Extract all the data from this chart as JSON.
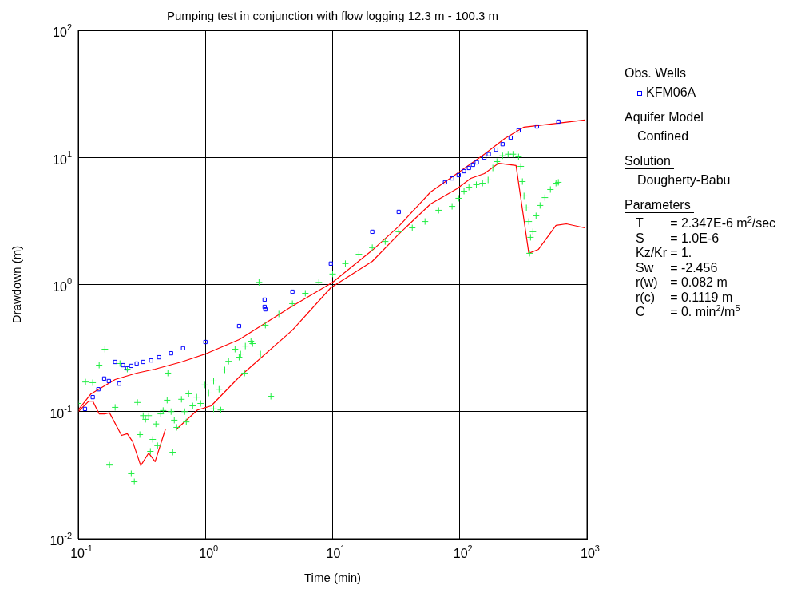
{
  "chart_data": {
    "type": "scatter",
    "title": "Pumping test in conjunction with flow logging 12.3 m - 100.3 m",
    "xlabel": "Time (min)",
    "ylabel": "Drawdown (m)",
    "legend_title": "Obs. Wells",
    "log": "xy",
    "grid": true,
    "legend": "right",
    "xlim": [
      0.1,
      1000
    ],
    "ylim": [
      0.01,
      100
    ],
    "xticks": [
      {
        "value": 0.1,
        "label": "10$^{-1}$"
      },
      {
        "value": 1,
        "label": "10$^{0}$"
      },
      {
        "value": 10,
        "label": "10$^{1}$"
      },
      {
        "value": 100,
        "label": "10$^{2}$"
      },
      {
        "value": 1000,
        "label": "10$^{3}$"
      }
    ],
    "yticks": [
      {
        "value": 0.01,
        "label": "10$^{-2}$"
      },
      {
        "value": 0.1,
        "label": "10$^{-1}$"
      },
      {
        "value": 1,
        "label": "10$^{0}$"
      },
      {
        "value": 10,
        "label": "10$^{1}$"
      },
      {
        "value": 100,
        "label": "10$^{2}$"
      }
    ],
    "annotations": [
      "Aquifer Model",
      "Confined",
      "Solution",
      "Dougherty-Babu",
      "Parameters",
      "T = 2.347E-6 m$^{2}$/sec",
      "S = 1.0E-6",
      "Kz/Kr = 1.",
      "Sw = -2.456",
      "r(w) = 0.082 m",
      "r(c) = 0.1119 m",
      "C = 0. min$^{2}$/m$^{5}$"
    ],
    "series": [
      {
        "type": "scatter",
        "name": "KFM06A",
        "color": "#0000ff",
        "marker": "square",
        "x": [
          0.113,
          0.13,
          0.144,
          0.16,
          0.174,
          0.21,
          0.195,
          0.225,
          0.243,
          0.261,
          0.288,
          0.324,
          0.374,
          0.432,
          0.537,
          0.667,
          1.0,
          1.84,
          2.92,
          2.92,
          2.96,
          4.83,
          9.68,
          20.5,
          33.1,
          76.5,
          87,
          98,
          108,
          118,
          127,
          136,
          156,
          169,
          193,
          217,
          251,
          290,
          404,
          596
        ],
        "values": [
          0.105,
          0.13,
          0.15,
          0.182,
          0.174,
          0.166,
          0.246,
          0.232,
          0.219,
          0.229,
          0.239,
          0.246,
          0.253,
          0.268,
          0.288,
          0.315,
          0.353,
          0.471,
          0.76,
          0.667,
          0.638,
          0.878,
          1.46,
          2.6,
          3.73,
          6.37,
          6.84,
          7.25,
          7.79,
          8.26,
          8.75,
          9.14,
          9.96,
          10.6,
          11.5,
          12.7,
          14.3,
          16.3,
          17.5,
          19.1
        ]
      },
      {
        "type": "scatter",
        "color": "#22ee44",
        "marker": "cross",
        "x": [
          0.1,
          0.114,
          0.13,
          0.146,
          0.162,
          0.176,
          0.195,
          0.213,
          0.243,
          0.261,
          0.276,
          0.292,
          0.305,
          0.324,
          0.338,
          0.358,
          0.369,
          0.385,
          0.408,
          0.42,
          0.445,
          0.465,
          0.5,
          0.507,
          0.537,
          0.553,
          0.569,
          0.594,
          0.648,
          0.687,
          0.707,
          0.738,
          0.794,
          0.853,
          0.917,
          0.986,
          1.06,
          1.16,
          1.16,
          1.32,
          1.28,
          1.42,
          1.52,
          1.71,
          1.89,
          1.84,
          2.03,
          2.06,
          2.28,
          2.35,
          2.64,
          2.71,
          2.96,
          3.27,
          3.78,
          4.83,
          6.1,
          7.8,
          10.0,
          12.6,
          16.1,
          20.5,
          25.9,
          33.1,
          42.3,
          53.3,
          68.2,
          87,
          98,
          108,
          118,
          135,
          151,
          167,
          182,
          196,
          217,
          240,
          262,
          290,
          302,
          311,
          320,
          334,
          349,
          360,
          354,
          376,
          398,
          428,
          467,
          516,
          571,
          596
        ],
        "values": [
          0.116,
          0.171,
          0.169,
          0.232,
          0.31,
          0.038,
          0.108,
          0.239,
          0.216,
          0.0325,
          0.0281,
          0.118,
          0.066,
          0.093,
          0.087,
          0.093,
          0.0487,
          0.0605,
          0.08,
          0.054,
          0.096,
          0.102,
          0.123,
          0.201,
          0.1,
          0.048,
          0.0857,
          0.0752,
          0.125,
          0.1,
          0.083,
          0.138,
          0.111,
          0.13,
          0.116,
          0.162,
          0.14,
          0.174,
          0.105,
          0.103,
          0.15,
          0.213,
          0.249,
          0.31,
          0.284,
          0.268,
          0.201,
          0.328,
          0.358,
          0.343,
          1.04,
          0.284,
          0.479,
          0.132,
          0.586,
          0.707,
          0.853,
          1.04,
          1.21,
          1.46,
          1.73,
          1.95,
          2.18,
          2.6,
          2.79,
          3.13,
          3.84,
          4.12,
          4.77,
          5.43,
          5.83,
          6.1,
          6.27,
          6.65,
          8.26,
          9.27,
          10.3,
          10.6,
          10.6,
          10.1,
          8.5,
          6.46,
          4.98,
          4.01,
          3.13,
          2.35,
          1.76,
          2.6,
          3.47,
          4.19,
          4.83,
          5.59,
          6.27,
          6.37
        ]
      },
      {
        "type": "line",
        "color": "#ff0000",
        "marker": "none",
        "line_style": "solid",
        "x": [
          0.1,
          0.126,
          0.195,
          0.288,
          0.402,
          0.648,
          1.0,
          1.84,
          4.83,
          10,
          20.5,
          33.1,
          59,
          95,
          156,
          226,
          320,
          596,
          961
        ],
        "values": [
          0.103,
          0.138,
          0.179,
          0.201,
          0.216,
          0.246,
          0.284,
          0.369,
          0.676,
          1.04,
          1.86,
          2.87,
          5.35,
          7.46,
          10.6,
          14.1,
          17.3,
          18.6,
          19.7
        ]
      },
      {
        "type": "line",
        "color": "#ff0000",
        "marker": "none",
        "line_style": "solid",
        "x": [
          0.1,
          0.121,
          0.13,
          0.146,
          0.162,
          0.176,
          0.219,
          0.243,
          0.268,
          0.31,
          0.358,
          0.402,
          0.485,
          0.594,
          0.865,
          1.11,
          1.84,
          4.83,
          9.68,
          20.5,
          33.1,
          59,
          95,
          122,
          156,
          202,
          277,
          349,
          416,
          571,
          689,
          961
        ],
        "values": [
          0.1,
          0.121,
          0.121,
          0.096,
          0.096,
          0.098,
          0.065,
          0.067,
          0.058,
          0.0376,
          0.0473,
          0.0404,
          0.073,
          0.073,
          0.103,
          0.111,
          0.187,
          0.438,
          0.944,
          1.52,
          2.49,
          4.31,
          5.67,
          6.84,
          7.46,
          9.0,
          8.63,
          1.76,
          1.89,
          2.92,
          3.0,
          2.79
        ]
      }
    ]
  }
}
